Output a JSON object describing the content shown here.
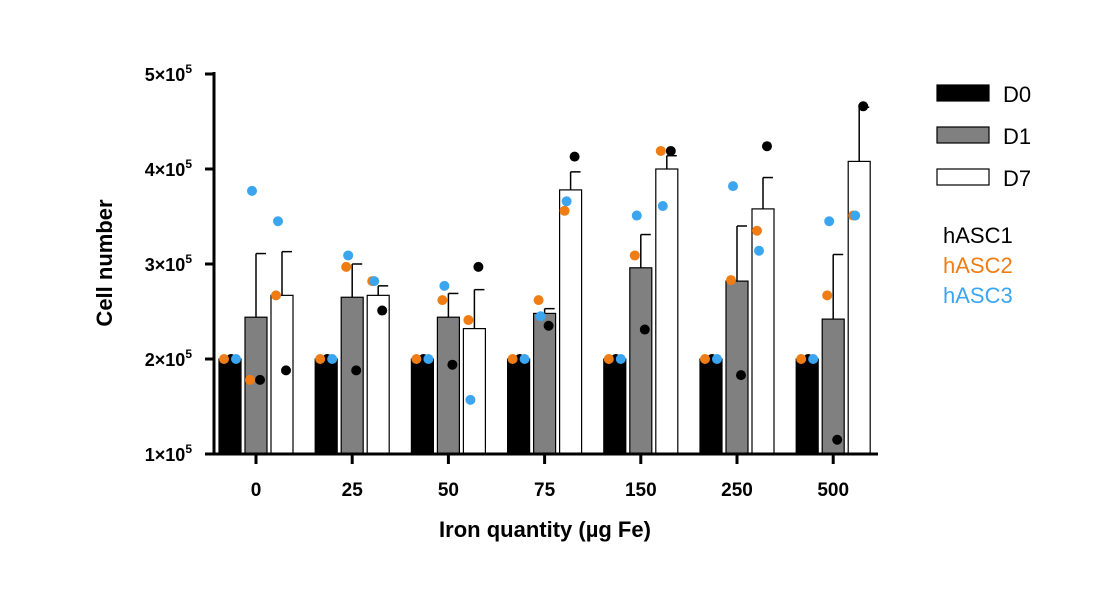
{
  "chart_data": {
    "type": "bar",
    "title": "",
    "xlabel": "Iron quantity (µg Fe)",
    "ylabel": "Cell number",
    "ylim": [
      100000,
      500000
    ],
    "yticks": [
      {
        "value": 100000,
        "base": "1×10",
        "exp": "5"
      },
      {
        "value": 200000,
        "base": "2×10",
        "exp": "5"
      },
      {
        "value": 300000,
        "base": "3×10",
        "exp": "5"
      },
      {
        "value": 400000,
        "base": "4×10",
        "exp": "5"
      },
      {
        "value": 500000,
        "base": "5×10",
        "exp": "5"
      }
    ],
    "categories": [
      "0",
      "25",
      "50",
      "75",
      "150",
      "250",
      "500"
    ],
    "series": [
      {
        "name": "D0",
        "fill": "#000000",
        "values": [
          200000,
          200000,
          200000,
          200000,
          200000,
          200000,
          200000
        ],
        "errors": [
          0,
          0,
          0,
          0,
          0,
          0,
          0
        ]
      },
      {
        "name": "D1",
        "fill": "#808080",
        "values": [
          244000,
          265000,
          244000,
          248000,
          296000,
          282000,
          242000
        ],
        "errors": [
          67000,
          35000,
          25000,
          5000,
          35000,
          58000,
          68000
        ]
      },
      {
        "name": "D7",
        "fill": "#ffffff",
        "values": [
          267000,
          267000,
          232000,
          378000,
          400000,
          358000,
          408000
        ],
        "errors": [
          46000,
          10000,
          41000,
          19000,
          14000,
          33000,
          57000
        ]
      }
    ],
    "replicates": [
      {
        "name": "hASC1",
        "color": "#000000"
      },
      {
        "name": "hASC2",
        "color": "#f07d14"
      },
      {
        "name": "hASC3",
        "color": "#3ca5f0"
      }
    ],
    "points": [
      [
        [
          [
            200000,
            200000,
            200000
          ],
          [
            178000,
            178000,
            377000
          ],
          [
            188000,
            267000,
            345000
          ]
        ],
        [
          [
            200000,
            200000,
            200000
          ],
          [
            188000,
            297000,
            309000
          ],
          [
            251000,
            282000,
            282000
          ]
        ],
        [
          [
            200000,
            200000,
            200000
          ],
          [
            194000,
            262000,
            277000
          ],
          [
            297000,
            241000,
            157000
          ]
        ],
        [
          [
            200000,
            200000,
            200000
          ],
          [
            235000,
            262000,
            245000
          ],
          [
            413000,
            356000,
            366000
          ]
        ],
        [
          [
            200000,
            200000,
            200000
          ],
          [
            231000,
            309000,
            351000
          ],
          [
            419000,
            419000,
            361000
          ]
        ],
        [
          [
            200000,
            200000,
            200000
          ],
          [
            183000,
            283000,
            382000
          ],
          [
            424000,
            335000,
            314000
          ]
        ],
        [
          [
            200000,
            200000,
            200000
          ],
          [
            115000,
            267000,
            345000
          ],
          [
            466000,
            351000,
            351000
          ]
        ]
      ]
    ],
    "legend": "right"
  }
}
